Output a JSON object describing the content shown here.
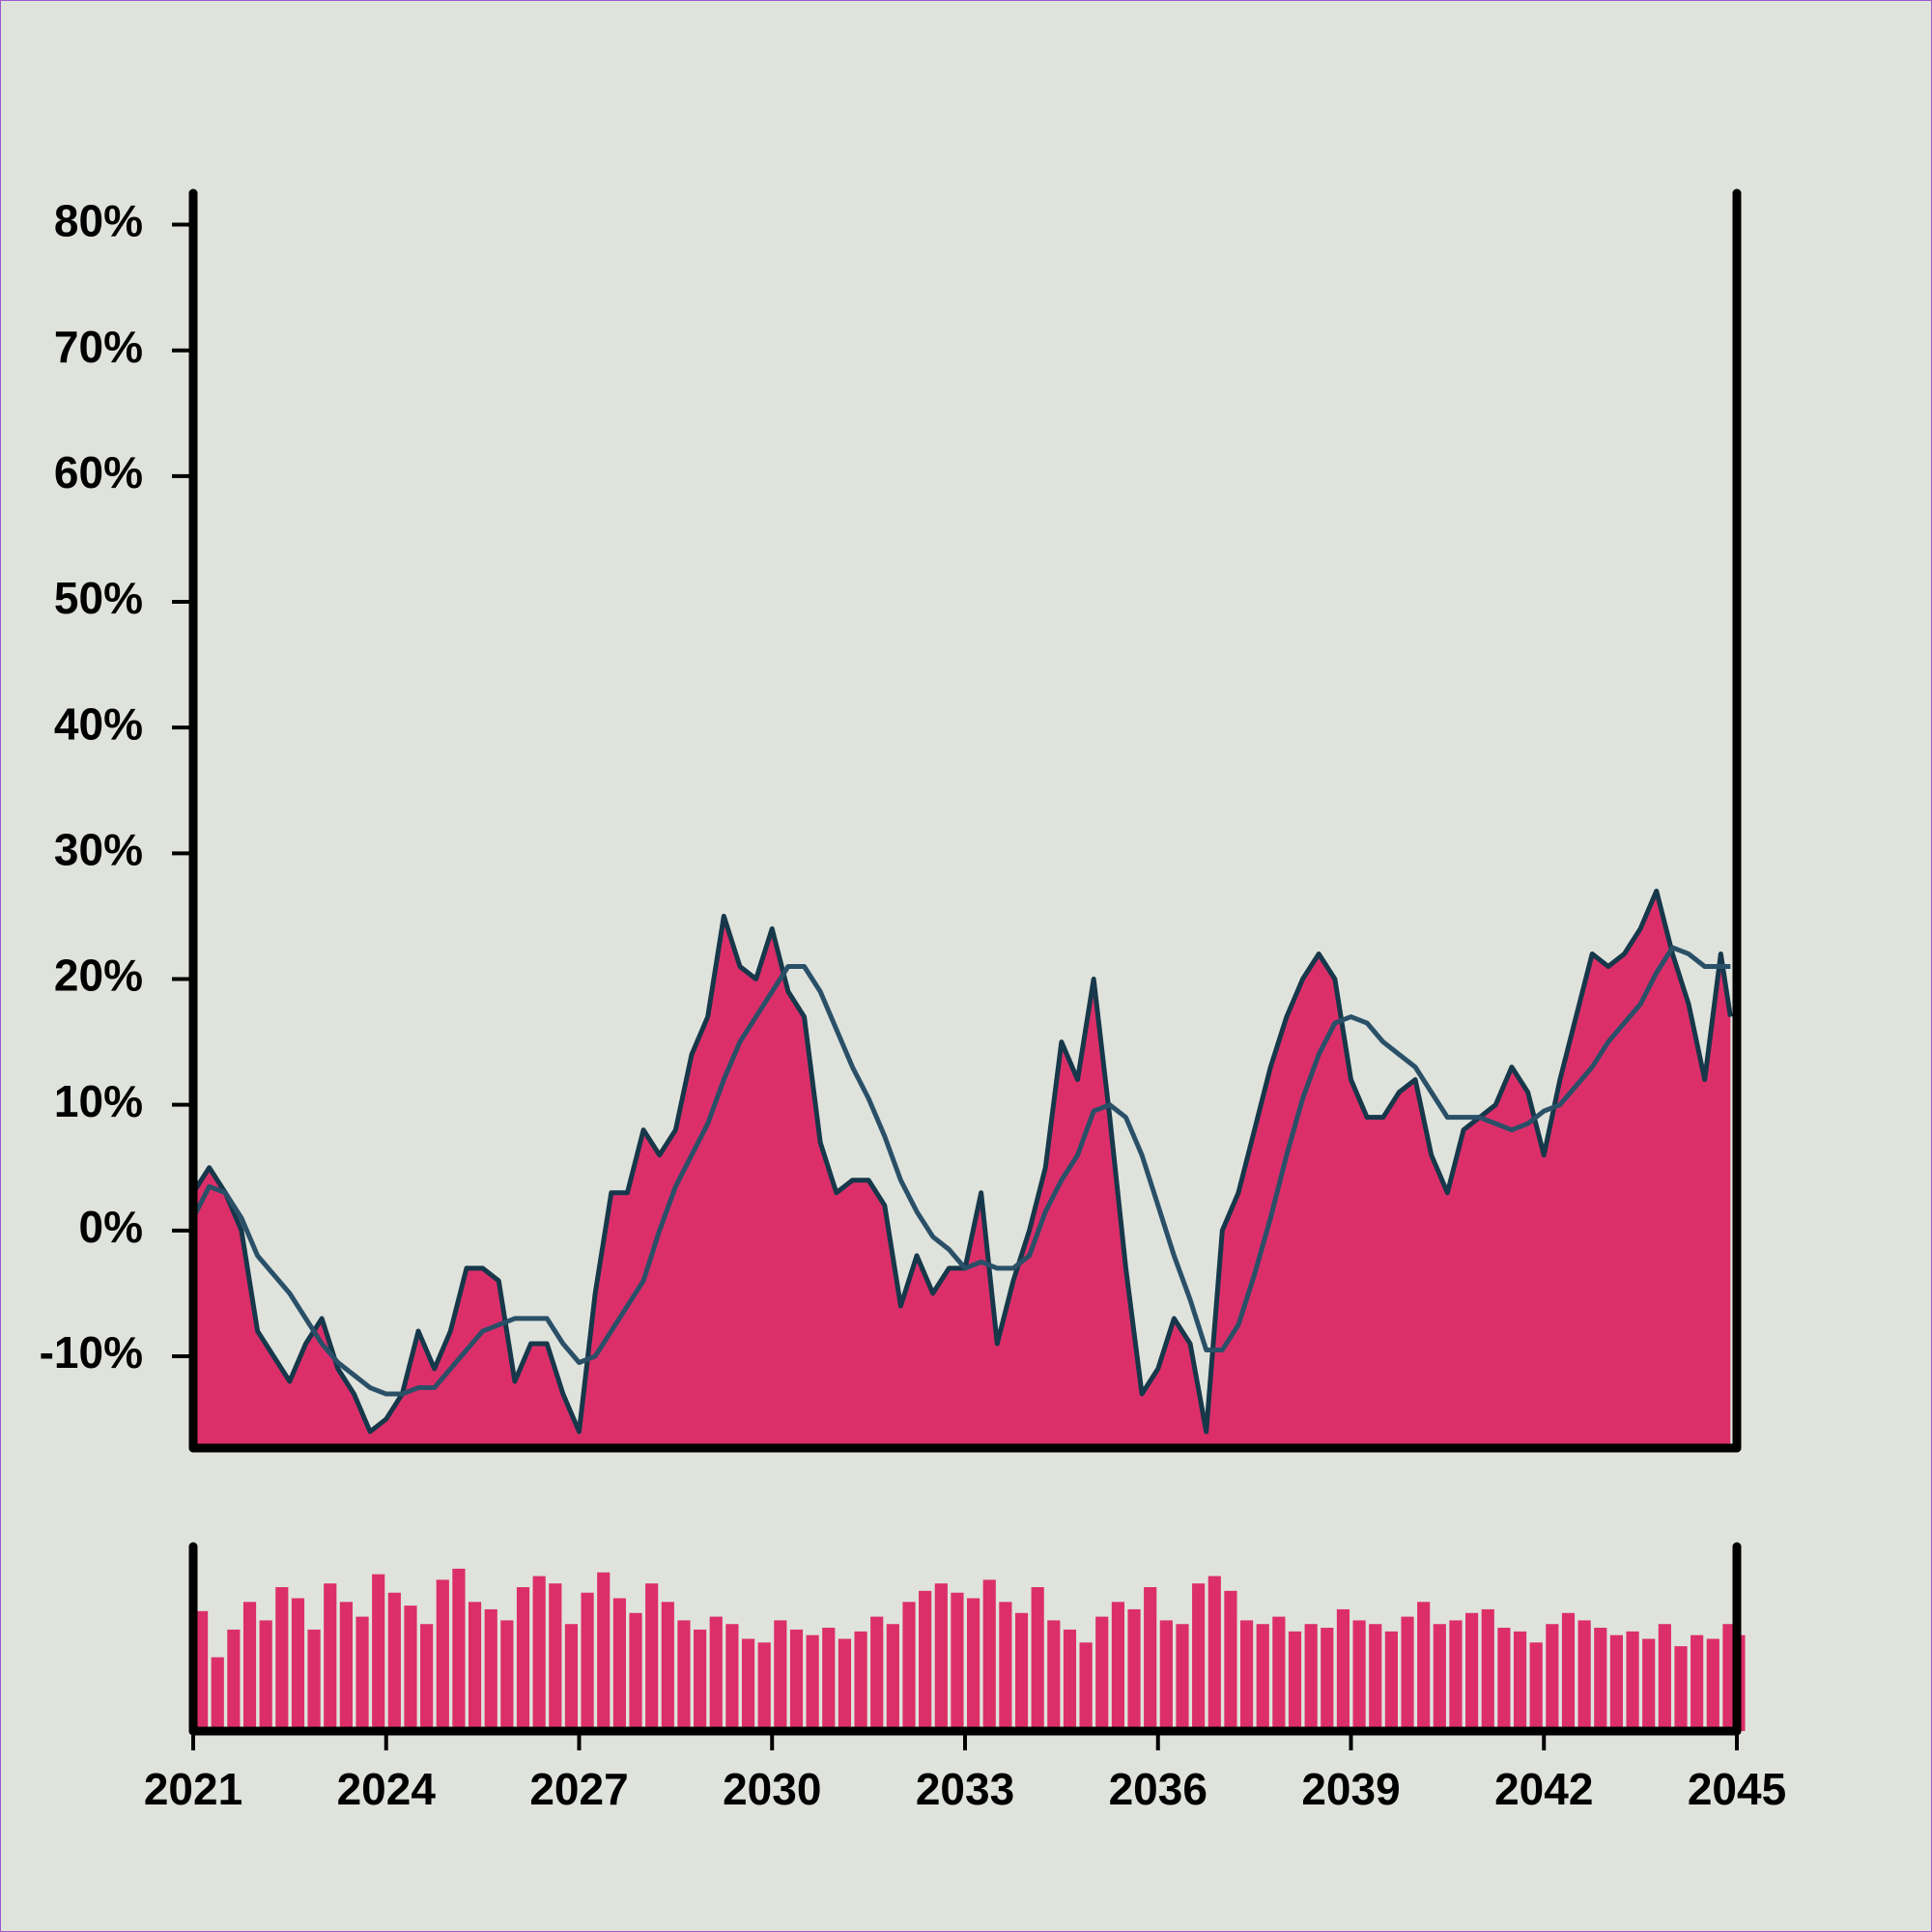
{
  "chart_data": {
    "type": "area",
    "x": [
      2021,
      2021.25,
      2021.5,
      2021.75,
      2022,
      2022.25,
      2022.5,
      2022.75,
      2023,
      2023.25,
      2023.5,
      2023.75,
      2024,
      2024.25,
      2024.5,
      2024.75,
      2025,
      2025.25,
      2025.5,
      2025.75,
      2026,
      2026.25,
      2026.5,
      2026.75,
      2027,
      2027.25,
      2027.5,
      2027.75,
      2028,
      2028.25,
      2028.5,
      2028.75,
      2029,
      2029.25,
      2029.5,
      2029.75,
      2030,
      2030.25,
      2030.5,
      2030.75,
      2031,
      2031.25,
      2031.5,
      2031.75,
      2032,
      2032.25,
      2032.5,
      2032.75,
      2033,
      2033.25,
      2033.5,
      2033.75,
      2034,
      2034.25,
      2034.5,
      2034.75,
      2035,
      2035.25,
      2035.5,
      2035.75,
      2036,
      2036.25,
      2036.5,
      2036.75,
      2037,
      2037.25,
      2037.5,
      2037.75,
      2038,
      2038.25,
      2038.5,
      2038.75,
      2039,
      2039.25,
      2039.5,
      2039.75,
      2040,
      2040.25,
      2040.5,
      2040.75,
      2041,
      2041.25,
      2041.5,
      2041.75,
      2042,
      2042.25,
      2042.5,
      2042.75,
      2043,
      2043.25,
      2043.5,
      2043.75,
      2044,
      2044.25,
      2044.5,
      2044.75,
      2044.9
    ],
    "series": [
      {
        "type": "area",
        "color": "#dc2f6a",
        "stroke": "#16384a",
        "values": [
          3,
          5,
          3,
          0,
          -8,
          -10,
          -12,
          -9,
          -7,
          -11,
          -13,
          -16,
          -15,
          -13,
          -8,
          -11,
          -8,
          -3,
          -3,
          -4,
          -12,
          -9,
          -9,
          -13,
          -16,
          -5,
          3,
          3,
          8,
          6,
          8,
          14,
          17,
          25,
          21,
          20,
          24,
          19,
          17,
          7,
          3,
          4,
          4,
          2,
          -6,
          -2,
          -5,
          -3,
          -3,
          3,
          -9,
          -4,
          0,
          5,
          15,
          12,
          20,
          9,
          -3,
          -13,
          -11,
          -7,
          -9,
          -16,
          0,
          3,
          8,
          13,
          17,
          20,
          22,
          20,
          12,
          9,
          9,
          11,
          12,
          6,
          3,
          8,
          9,
          10,
          13,
          11,
          6,
          12,
          17,
          22,
          21,
          22,
          24,
          27,
          22,
          18,
          12,
          22,
          17
        ]
      },
      {
        "type": "line",
        "color": "#2a5068",
        "values": [
          1,
          3.5,
          3,
          1,
          -2,
          -3.5,
          -5,
          -7,
          -9,
          -10.5,
          -11.5,
          -12.5,
          -13,
          -13,
          -12.5,
          -12.5,
          -11,
          -9.5,
          -8,
          -7.5,
          -7,
          -7,
          -7,
          -9,
          -10.5,
          -10,
          -8,
          -6,
          -4,
          0,
          3.5,
          6,
          8.5,
          12,
          15,
          17,
          19,
          21,
          21,
          19,
          16,
          13,
          10.5,
          7.5,
          4,
          1.5,
          -0.5,
          -1.5,
          -3,
          -2.5,
          -3,
          -3,
          -2,
          1.5,
          4,
          6,
          9.5,
          10,
          9,
          6,
          2,
          -2,
          -5.5,
          -9.5,
          -9.5,
          -7.5,
          -3.5,
          1,
          6,
          10.5,
          14,
          16.5,
          17,
          16.5,
          15,
          14,
          13,
          11,
          9,
          9,
          9,
          8.5,
          8,
          8.5,
          9.5,
          10,
          11.5,
          13,
          15,
          16.5,
          18,
          20.5,
          22.5,
          22,
          21,
          21,
          21
        ]
      }
    ],
    "volume": {
      "color": "#dc2f6a",
      "ylim": [
        0,
        100
      ],
      "values": [
        65,
        40,
        55,
        70,
        60,
        78,
        72,
        55,
        80,
        70,
        62,
        85,
        75,
        68,
        58,
        82,
        88,
        70,
        66,
        60,
        78,
        84,
        80,
        58,
        75,
        86,
        72,
        64,
        80,
        70,
        60,
        55,
        62,
        58,
        50,
        48,
        60,
        55,
        52,
        56,
        50,
        54,
        62,
        58,
        70,
        76,
        80,
        75,
        72,
        82,
        70,
        64,
        78,
        60,
        55,
        48,
        62,
        70,
        66,
        78,
        60,
        58,
        80,
        84,
        76,
        60,
        58,
        62,
        54,
        58,
        56,
        66,
        60,
        58,
        54,
        62,
        70,
        58,
        60,
        64,
        66,
        56,
        54,
        48,
        58,
        64,
        60,
        56,
        52,
        54,
        50,
        58,
        46,
        52,
        50,
        58,
        52
      ]
    },
    "xlim": [
      2021,
      2045
    ],
    "ylim": [
      -17.3,
      82.5
    ],
    "xticks": [
      2021,
      2024,
      2027,
      2030,
      2033,
      2036,
      2039,
      2042,
      2045
    ],
    "yticks": [
      {
        "value": -10,
        "label": "-10%"
      },
      {
        "value": 0,
        "label": "0%"
      },
      {
        "value": 10,
        "label": "10%"
      },
      {
        "value": 20,
        "label": "20%"
      },
      {
        "value": 30,
        "label": "30%"
      },
      {
        "value": 40,
        "label": "40%"
      },
      {
        "value": 50,
        "label": "50%"
      },
      {
        "value": 60,
        "label": "60%"
      },
      {
        "value": 70,
        "label": "70%"
      },
      {
        "value": 80,
        "label": "80%"
      }
    ]
  }
}
